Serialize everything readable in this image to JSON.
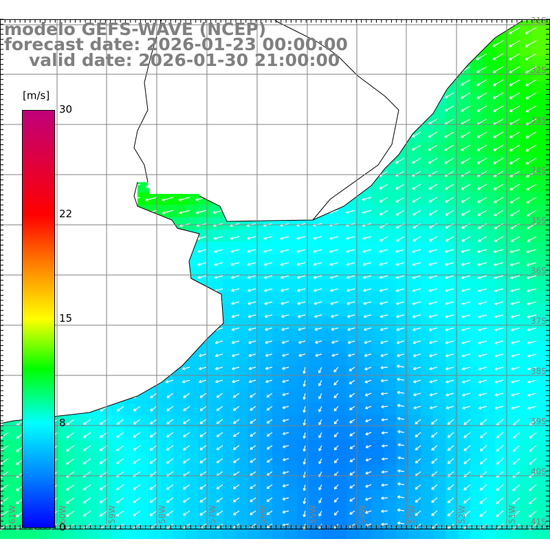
{
  "title": {
    "model": "modelo GEFS-WAVE (NCEP)",
    "forecast": "forecast date: 2026-01-23 00:00:00",
    "valid": "valid date: 2026-01-30 21:00:00"
  },
  "colorbar": {
    "unit": "[m/s]",
    "labels": [
      "30",
      "22",
      "15",
      "8",
      "0"
    ],
    "colors": [
      "#c0007a",
      "#ff0000",
      "#ff8000",
      "#ffff00",
      "#00ff00",
      "#00ffff",
      "#0080ff",
      "#0000ff"
    ]
  },
  "axes": {
    "lon_labels": [
      "61W",
      "60W",
      "59W",
      "58W",
      "57W",
      "56W",
      "55W",
      "54W",
      "53W",
      "52W",
      "51W"
    ],
    "lat_labels": [
      "31S",
      "32S",
      "33S",
      "34S",
      "35S",
      "36S",
      "37S",
      "38S",
      "39S",
      "40S",
      "41S"
    ]
  },
  "chart_data": {
    "type": "heatmap",
    "variable": "wind speed",
    "unit": "m/s",
    "lon_range": [
      -62,
      -51
    ],
    "lat_range": [
      -41.5,
      -31
    ],
    "speed_grid_rows_north_to_south": [
      [
        0,
        0,
        0,
        0,
        0,
        0,
        0,
        0,
        0,
        12,
        13
      ],
      [
        0,
        0,
        0,
        0,
        0,
        0,
        0,
        0,
        9,
        11,
        12
      ],
      [
        0,
        0,
        0,
        0,
        0,
        0,
        0,
        9,
        10,
        11,
        12
      ],
      [
        0,
        0,
        12,
        12,
        10,
        8,
        8,
        9,
        9,
        10,
        11
      ],
      [
        0,
        0,
        0,
        8,
        8,
        8,
        8,
        8,
        8,
        9,
        10
      ],
      [
        0,
        0,
        0,
        0,
        7,
        7,
        7,
        7,
        8,
        8,
        9
      ],
      [
        0,
        0,
        0,
        6.5,
        6.5,
        5.5,
        5,
        6,
        7,
        8,
        8
      ],
      [
        9,
        8,
        7,
        6.5,
        6,
        5,
        4.5,
        5,
        6.5,
        7.5,
        8
      ],
      [
        10,
        9,
        8,
        7,
        6,
        4.5,
        4,
        4,
        6,
        7.5,
        8.5
      ],
      [
        10,
        9,
        8,
        7,
        6,
        5,
        4,
        5,
        6,
        8,
        9
      ]
    ],
    "colorbar_range": [
      0,
      30
    ]
  }
}
